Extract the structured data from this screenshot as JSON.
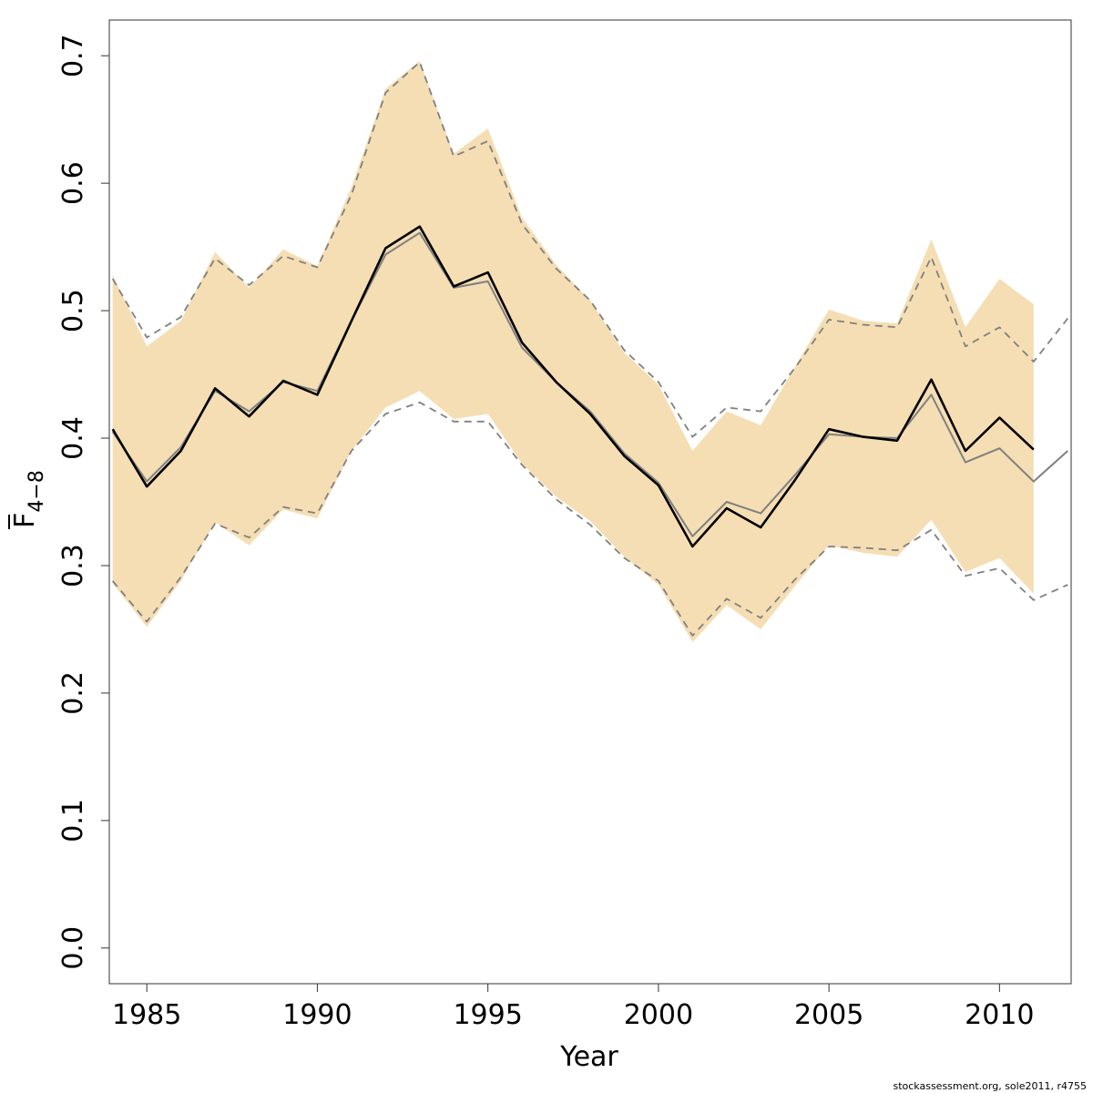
{
  "chart_data": {
    "type": "line",
    "xlabel": "Year",
    "ylabel": {
      "main": "F",
      "subscript": "4−8"
    },
    "footer": "stockassessment.org, sole2011, r4755",
    "xlim": [
      1983.9,
      2012.1
    ],
    "ylim": [
      -0.028,
      0.728
    ],
    "x_ticks": [
      {
        "value": 1985,
        "label": "1985"
      },
      {
        "value": 1990,
        "label": "1990"
      },
      {
        "value": 1995,
        "label": "1995"
      },
      {
        "value": 2000,
        "label": "2000"
      },
      {
        "value": 2005,
        "label": "2005"
      },
      {
        "value": 2010,
        "label": "2010"
      }
    ],
    "y_ticks": [
      {
        "value": 0.0,
        "label": "0.0"
      },
      {
        "value": 0.1,
        "label": "0.1"
      },
      {
        "value": 0.2,
        "label": "0.2"
      },
      {
        "value": 0.3,
        "label": "0.3"
      },
      {
        "value": 0.4,
        "label": "0.4"
      },
      {
        "value": 0.5,
        "label": "0.5"
      },
      {
        "value": 0.6,
        "label": "0.6"
      },
      {
        "value": 0.7,
        "label": "0.7"
      }
    ],
    "colors": {
      "band": "#f5deb3",
      "main": "#000000",
      "alt": "#808080",
      "axis": "#333333"
    },
    "band": {
      "x": [
        1984,
        1985,
        1986,
        1987,
        1988,
        1989,
        1990,
        1991,
        1992,
        1993,
        1994,
        1995,
        1996,
        1997,
        1998,
        1999,
        2000,
        2001,
        2002,
        2003,
        2004,
        2005,
        2006,
        2007,
        2008,
        2009,
        2010,
        2011
      ],
      "upper": [
        0.528,
        0.472,
        0.492,
        0.546,
        0.518,
        0.548,
        0.535,
        0.597,
        0.674,
        0.696,
        0.623,
        0.643,
        0.573,
        0.536,
        0.508,
        0.467,
        0.442,
        0.39,
        0.421,
        0.41,
        0.456,
        0.501,
        0.492,
        0.49,
        0.556,
        0.487,
        0.525,
        0.505
      ],
      "lower": [
        0.286,
        0.252,
        0.288,
        0.334,
        0.316,
        0.344,
        0.337,
        0.39,
        0.424,
        0.437,
        0.415,
        0.419,
        0.38,
        0.354,
        0.335,
        0.307,
        0.285,
        0.24,
        0.269,
        0.25,
        0.284,
        0.316,
        0.31,
        0.307,
        0.336,
        0.295,
        0.306,
        0.278
      ]
    },
    "series": [
      {
        "role": "main-estimate",
        "x": [
          1984,
          1985,
          1986,
          1987,
          1988,
          1989,
          1990,
          1991,
          1992,
          1993,
          1994,
          1995,
          1996,
          1997,
          1998,
          1999,
          2000,
          2001,
          2002,
          2003,
          2004,
          2005,
          2006,
          2007,
          2008,
          2009,
          2010,
          2011
        ],
        "values": [
          0.407,
          0.362,
          0.39,
          0.439,
          0.417,
          0.445,
          0.434,
          0.492,
          0.549,
          0.566,
          0.519,
          0.53,
          0.475,
          0.444,
          0.419,
          0.386,
          0.363,
          0.315,
          0.345,
          0.33,
          0.367,
          0.407,
          0.401,
          0.398,
          0.446,
          0.39,
          0.416,
          0.391
        ]
      },
      {
        "role": "alt-estimate",
        "x": [
          1984,
          1985,
          1986,
          1987,
          1988,
          1989,
          1990,
          1991,
          1992,
          1993,
          1994,
          1995,
          1996,
          1997,
          1998,
          1999,
          2000,
          2001,
          2002,
          2003,
          2004,
          2005,
          2006,
          2007,
          2008,
          2009,
          2010,
          2011,
          2012
        ],
        "values": [
          0.405,
          0.366,
          0.393,
          0.437,
          0.421,
          0.444,
          0.437,
          0.492,
          0.544,
          0.561,
          0.518,
          0.523,
          0.471,
          0.444,
          0.421,
          0.388,
          0.365,
          0.323,
          0.35,
          0.341,
          0.371,
          0.403,
          0.401,
          0.4,
          0.434,
          0.381,
          0.392,
          0.366,
          0.39
        ]
      },
      {
        "role": "alt-upper",
        "x": [
          1984,
          1985,
          1986,
          1987,
          1988,
          1989,
          1990,
          1991,
          1992,
          1993,
          1994,
          1995,
          1996,
          1997,
          1998,
          1999,
          2000,
          2001,
          2002,
          2003,
          2004,
          2005,
          2006,
          2007,
          2008,
          2009,
          2010,
          2011,
          2012
        ],
        "values": [
          0.525,
          0.479,
          0.495,
          0.541,
          0.52,
          0.543,
          0.534,
          0.591,
          0.671,
          0.695,
          0.621,
          0.633,
          0.568,
          0.533,
          0.508,
          0.469,
          0.444,
          0.401,
          0.424,
          0.421,
          0.455,
          0.493,
          0.489,
          0.487,
          0.542,
          0.472,
          0.487,
          0.46,
          0.494
        ]
      },
      {
        "role": "alt-lower",
        "x": [
          1984,
          1985,
          1986,
          1987,
          1988,
          1989,
          1990,
          1991,
          1992,
          1993,
          1994,
          1995,
          1996,
          1997,
          1998,
          1999,
          2000,
          2001,
          2002,
          2003,
          2004,
          2005,
          2006,
          2007,
          2008,
          2009,
          2010,
          2011,
          2012
        ],
        "values": [
          0.288,
          0.256,
          0.291,
          0.333,
          0.322,
          0.346,
          0.341,
          0.39,
          0.419,
          0.428,
          0.413,
          0.413,
          0.379,
          0.352,
          0.332,
          0.306,
          0.288,
          0.245,
          0.274,
          0.259,
          0.289,
          0.315,
          0.314,
          0.312,
          0.328,
          0.292,
          0.298,
          0.273,
          0.285
        ]
      }
    ]
  }
}
